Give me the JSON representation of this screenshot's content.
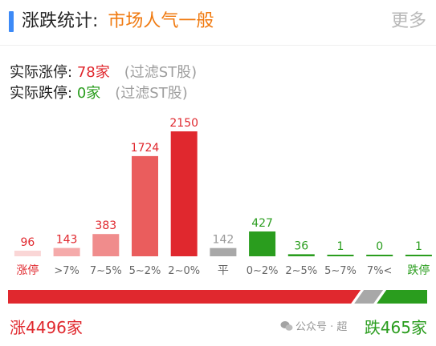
{
  "header": {
    "title": "涨跌统计:",
    "sentiment": "市场人气一般",
    "more": "更多"
  },
  "stats": {
    "limit_up_label": "实际涨停:",
    "limit_up_value": "78家",
    "limit_up_note": "(过滤ST股)",
    "limit_down_label": "实际跌停:",
    "limit_down_value": "0家",
    "limit_down_note": "(过滤ST股)"
  },
  "chart_data": {
    "type": "bar",
    "categories": [
      "涨停",
      ">7%",
      "7~5%",
      "5~2%",
      "2~0%",
      "平",
      "0~2%",
      "2~5%",
      "5~7%",
      "7%<",
      "跌停"
    ],
    "values": [
      96,
      143,
      383,
      1724,
      2150,
      142,
      427,
      36,
      1,
      0,
      1
    ],
    "bar_colors": [
      "#fad6d6",
      "#f5aaaa",
      "#f08c8c",
      "#ea5d5d",
      "#e0282e",
      "#a8a8a8",
      "#2a9d1e",
      "#2a9d1e",
      "#2a9d1e",
      "#2a9d1e",
      "#2a9d1e"
    ],
    "label_colors": [
      "#e0282e",
      "#e0282e",
      "#e0282e",
      "#e0282e",
      "#e0282e",
      "#999999",
      "#2a9d1e",
      "#2a9d1e",
      "#2a9d1e",
      "#2a9d1e",
      "#2a9d1e"
    ],
    "category_colors": [
      "#e0282e",
      "#666666",
      "#666666",
      "#666666",
      "#666666",
      "#666666",
      "#666666",
      "#666666",
      "#666666",
      "#666666",
      "#2a9d1e"
    ],
    "ylim": [
      0,
      2150
    ],
    "grid": false
  },
  "ratio": {
    "rise": 4496,
    "fall": 465
  },
  "footer": {
    "rise_total": "涨4496家",
    "fall_total": "跌465家",
    "watermark": "公众号 · 超"
  },
  "colors": {
    "up": "#e0282e",
    "down": "#2a9d1e",
    "accent": "#3d8af7",
    "sentiment": "#f07a10"
  }
}
